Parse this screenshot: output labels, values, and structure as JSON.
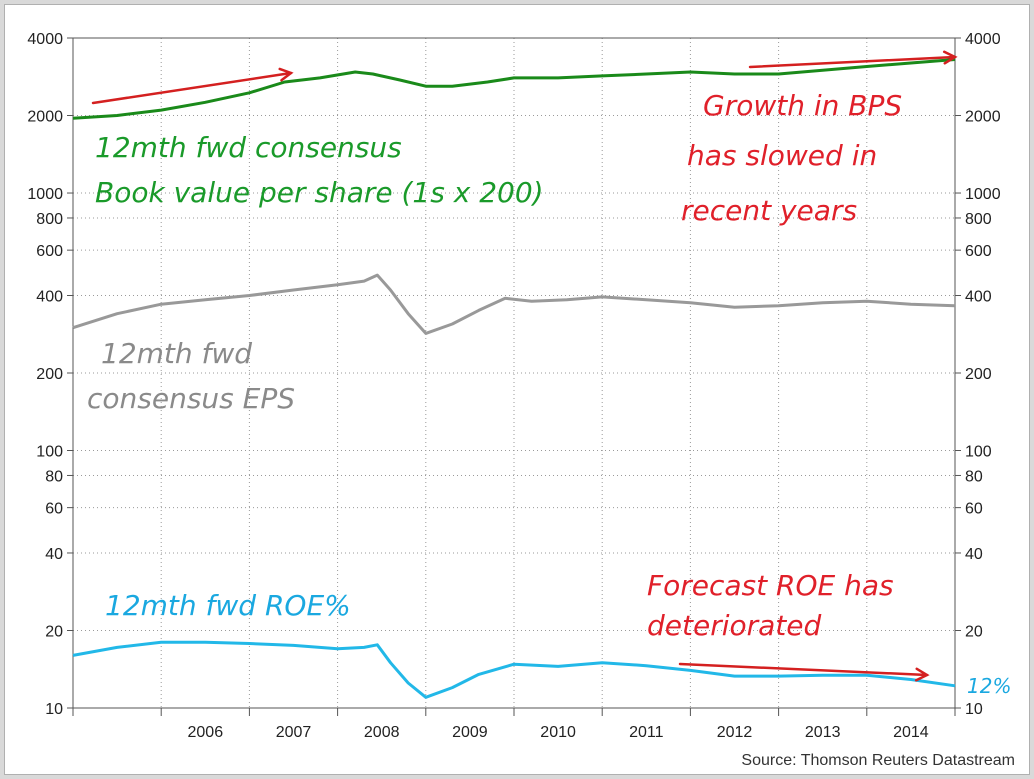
{
  "source": "Source: Thomson Reuters Datastream",
  "chart_data": {
    "type": "line",
    "y_scale": "log",
    "ylim": [
      10,
      4000
    ],
    "y_ticks": [
      "4000",
      "2000",
      "1000",
      "800",
      "600",
      "400",
      "200",
      "100",
      "80",
      "60",
      "40",
      "20",
      "10"
    ],
    "x_ticks": [
      "2006",
      "2007",
      "2008",
      "2009",
      "2010",
      "2011",
      "2012",
      "2013",
      "2014"
    ],
    "xlim": [
      2005.0,
      2015.0
    ],
    "grid": true,
    "series": [
      {
        "color": "#1a8a1a",
        "x": [
          2005.0,
          2005.5,
          2006.0,
          2006.5,
          2007.0,
          2007.4,
          2007.8,
          2008.2,
          2008.4,
          2008.7,
          2009.0,
          2009.3,
          2009.7,
          2010.0,
          2010.5,
          2011.0,
          2011.5,
          2012.0,
          2012.5,
          2013.0,
          2013.5,
          2014.0,
          2014.5,
          2015.0
        ],
        "values": [
          1950,
          2000,
          2100,
          2250,
          2450,
          2700,
          2800,
          2950,
          2900,
          2750,
          2600,
          2600,
          2700,
          2800,
          2800,
          2850,
          2900,
          2950,
          2900,
          2900,
          3000,
          3100,
          3200,
          3300
        ]
      },
      {
        "color": "#999999",
        "x": [
          2005.0,
          2005.5,
          2006.0,
          2006.5,
          2007.0,
          2007.5,
          2008.0,
          2008.3,
          2008.45,
          2008.6,
          2008.8,
          2009.0,
          2009.3,
          2009.6,
          2009.9,
          2010.2,
          2010.6,
          2011.0,
          2011.5,
          2012.0,
          2012.5,
          2013.0,
          2013.5,
          2014.0,
          2014.5,
          2015.0
        ],
        "values": [
          300,
          340,
          370,
          385,
          400,
          420,
          440,
          455,
          480,
          420,
          340,
          285,
          310,
          350,
          390,
          380,
          385,
          395,
          385,
          375,
          360,
          365,
          375,
          380,
          370,
          365
        ]
      },
      {
        "color": "#22b8e8",
        "x": [
          2005.0,
          2005.5,
          2006.0,
          2006.5,
          2007.0,
          2007.5,
          2008.0,
          2008.3,
          2008.45,
          2008.6,
          2008.8,
          2009.0,
          2009.3,
          2009.6,
          2010.0,
          2010.5,
          2011.0,
          2011.5,
          2012.0,
          2012.5,
          2013.0,
          2013.5,
          2014.0,
          2014.5,
          2015.0
        ],
        "values": [
          16,
          17.2,
          18,
          18,
          17.8,
          17.5,
          17,
          17.2,
          17.6,
          15,
          12.5,
          11,
          12,
          13.5,
          14.8,
          14.5,
          15,
          14.6,
          14,
          13.3,
          13.3,
          13.4,
          13.4,
          12.9,
          12.2
        ]
      }
    ],
    "annotations": [
      {
        "text": "12mth fwd consensus",
        "color": "#1a9a2a"
      },
      {
        "text": "Book value per share (1s x 200)",
        "color": "#1a9a2a"
      },
      {
        "text": "Growth in BPS",
        "color": "#e0202a"
      },
      {
        "text": "has slowed in",
        "color": "#e0202a"
      },
      {
        "text": "recent years",
        "color": "#e0202a"
      },
      {
        "text": "12mth fwd",
        "color": "#8a8a8a"
      },
      {
        "text": "consensus EPS",
        "color": "#8a8a8a"
      },
      {
        "text": "12mth fwd ROE%",
        "color": "#1aa8e0"
      },
      {
        "text": "Forecast ROE has",
        "color": "#e0202a"
      },
      {
        "text": "deteriorated",
        "color": "#e0202a"
      },
      {
        "text": "12%",
        "color": "#1aa8e0"
      }
    ]
  }
}
